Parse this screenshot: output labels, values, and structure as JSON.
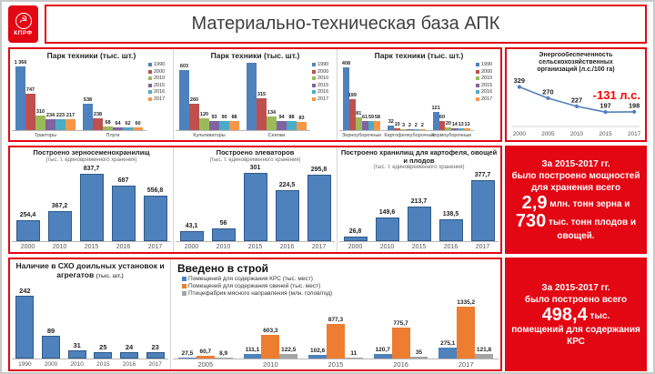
{
  "header": {
    "title": "Материально-техническая база АПК",
    "logo_text": "КПРФ"
  },
  "colors": {
    "accent_red": "#E30613",
    "annotation_red": "#FF0000",
    "bar_blue": "#4F81BD",
    "bar_orange": "#ED7D31",
    "bar_gray": "#A5A5A5"
  },
  "chart_data": [
    {
      "type": "bar",
      "title": "Парк техники (тыс. шт.)",
      "categories": [
        "Тракторы",
        "Плуги"
      ],
      "ymax": 1450,
      "series": [
        {
          "name": "1990",
          "color": "#4F81BD",
          "values": [
            1366,
            538
          ],
          "labels": [
            "1 366",
            "538"
          ]
        },
        {
          "name": "2000",
          "color": "#C0504D",
          "values": [
            747,
            238
          ],
          "labels": [
            "747",
            "238"
          ]
        },
        {
          "name": "2010",
          "color": "#9BBB59",
          "values": [
            310,
            68
          ],
          "labels": [
            "310",
            "68"
          ]
        },
        {
          "name": "2015",
          "color": "#8064A2",
          "values": [
            234,
            64
          ],
          "labels": [
            "234",
            "64"
          ]
        },
        {
          "name": "2016",
          "color": "#4BACC6",
          "values": [
            223,
            62
          ],
          "labels": [
            "223",
            "62"
          ]
        },
        {
          "name": "2017",
          "color": "#F79646",
          "values": [
            217,
            60
          ],
          "labels": [
            "217",
            "60"
          ]
        }
      ]
    },
    {
      "type": "bar",
      "title": "Парк техники (тыс. шт.)",
      "categories": [
        "Культиваторы",
        "Сеялки"
      ],
      "ymax": 700,
      "series": [
        {
          "name": "1990",
          "color": "#4F81BD",
          "values": [
            603,
            673
          ],
          "labels": [
            "603",
            ""
          ]
        },
        {
          "name": "2000",
          "color": "#C0504D",
          "values": [
            260,
            315
          ],
          "labels": [
            "260",
            "315"
          ]
        },
        {
          "name": "2010",
          "color": "#9BBB59",
          "values": [
            120,
            134
          ],
          "labels": [
            "120",
            "134"
          ]
        },
        {
          "name": "2015",
          "color": "#8064A2",
          "values": [
            93,
            94
          ],
          "labels": [
            "93",
            "94"
          ]
        },
        {
          "name": "2016",
          "color": "#4BACC6",
          "values": [
            90,
            88
          ],
          "labels": [
            "90",
            "88"
          ]
        },
        {
          "name": "2017",
          "color": "#F79646",
          "values": [
            88,
            83
          ],
          "labels": [
            "88",
            "83"
          ]
        }
      ]
    },
    {
      "type": "bar",
      "title": "Парк техники (тыс. шт.)",
      "categories": [
        "Зерноуборочные",
        "Картофелеуборочные",
        "Кормоуборочные"
      ],
      "ymax": 455,
      "series": [
        {
          "name": "1990",
          "color": "#4F81BD",
          "values": [
            408,
            32,
            121
          ],
          "labels": [
            "408",
            "32",
            "121"
          ]
        },
        {
          "name": "2000",
          "color": "#C0504D",
          "values": [
            199,
            10,
            60
          ],
          "labels": [
            "199",
            "10",
            "60"
          ]
        },
        {
          "name": "2010",
          "color": "#9BBB59",
          "values": [
            81,
            3,
            20
          ],
          "labels": [
            "81",
            "3",
            "20"
          ]
        },
        {
          "name": "2015",
          "color": "#8064A2",
          "values": [
            61,
            2,
            14
          ],
          "labels": [
            "61",
            "2",
            "14"
          ]
        },
        {
          "name": "2016",
          "color": "#4BACC6",
          "values": [
            59,
            2,
            13
          ],
          "labels": [
            "59",
            "2",
            "13"
          ]
        },
        {
          "name": "2017",
          "color": "#F79646",
          "values": [
            58,
            2,
            13
          ],
          "labels": [
            "58",
            "2",
            "13"
          ]
        }
      ]
    },
    {
      "type": "line",
      "title_lines": [
        "Энергообеспеченность",
        "сельскохозяйственных",
        "организаций (л.с./100 га)"
      ],
      "categories": [
        "2000",
        "2005",
        "2010",
        "2015",
        "2017"
      ],
      "values": [
        329,
        270,
        227,
        197,
        198
      ],
      "labels": [
        "329",
        "270",
        "227",
        "197",
        "198"
      ],
      "ylim": [
        150,
        360
      ],
      "line_color": "#4F81BD",
      "annotation": "-131 л.с."
    },
    {
      "type": "bar",
      "title": "Построено зерносеменохранилищ",
      "subtitle": "(тыс. т. единовременного хранения)",
      "categories": [
        "2000",
        "2010",
        "2015",
        "2016",
        "2017"
      ],
      "ymax": 950,
      "series": [
        {
          "name": "построено",
          "color": "#4F81BD",
          "border": "#2E5A88",
          "values": [
            254.4,
            367.2,
            837.7,
            687,
            556.8
          ],
          "labels": [
            "254,4",
            "367,2",
            "837,7",
            "687",
            "556,8"
          ]
        }
      ]
    },
    {
      "type": "bar",
      "title": "Построено элеваторов",
      "subtitle": "(тыс. т. единовременного хранения)",
      "categories": [
        "2000",
        "2010",
        "2015",
        "2016",
        "2017"
      ],
      "ymax": 340,
      "series": [
        {
          "name": "построено",
          "color": "#4F81BD",
          "border": "#2E5A88",
          "values": [
            43.1,
            56,
            301,
            224.5,
            295.8
          ],
          "labels": [
            "43,1",
            "56",
            "301",
            "224,5",
            "295,8"
          ]
        }
      ]
    },
    {
      "type": "bar",
      "title": "Построено хранилищ для картофеля, овощей и плодов",
      "subtitle": "(тыс. т. единовременного хранения)",
      "categories": [
        "2000",
        "2010",
        "2015",
        "2016",
        "2017"
      ],
      "ymax": 430,
      "series": [
        {
          "name": "построено",
          "color": "#4F81BD",
          "border": "#2E5A88",
          "values": [
            26.8,
            149.6,
            213.7,
            138.5,
            377.7
          ],
          "labels": [
            "26,8",
            "149,6",
            "213,7",
            "138,5",
            "377,7"
          ]
        }
      ]
    },
    {
      "type": "bar",
      "title": "Наличие в СХО доильных установок и агрегатов",
      "unit": "(тыс. шт.)",
      "categories": [
        "1990",
        "2000",
        "2010",
        "2015",
        "2016",
        "2017"
      ],
      "ymax": 300,
      "series": [
        {
          "name": "наличие",
          "color": "#4F81BD",
          "border": "#2E5A88",
          "values": [
            242,
            89,
            31,
            25,
            24,
            23
          ],
          "labels": [
            "242",
            "89",
            "31",
            "25",
            "24",
            "23"
          ]
        }
      ]
    },
    {
      "type": "bar",
      "title": "Введено в строй",
      "categories": [
        "2005",
        "2010",
        "2015",
        "2016",
        "2017"
      ],
      "ymax": 1490,
      "series": [
        {
          "name": "Помещений для содержания КРС (тыс. мест)",
          "color": "#4F81BD",
          "values": [
            27.5,
            111.1,
            102.6,
            120.7,
            275.1
          ],
          "labels": [
            "27,5",
            "111,1",
            "102,6",
            "120,7",
            "275,1"
          ]
        },
        {
          "name": "Помещений для содержания свиней (тыс. мест)",
          "color": "#ED7D31",
          "values": [
            60.7,
            603.3,
            877.3,
            775.7,
            1335.2
          ],
          "labels": [
            "60,7",
            "603,3",
            "877,3",
            "775,7",
            "1335,2"
          ]
        },
        {
          "name": "Птицефабрик мясного направления (млн. голов/год)",
          "color": "#A5A5A5",
          "values": [
            8.9,
            122.5,
            11,
            35,
            121.8
          ],
          "labels": [
            "8,9",
            "122,5",
            "11",
            "35",
            "121,8"
          ]
        }
      ]
    }
  ],
  "grain_box": {
    "line1": "За 2015-2017 гг.",
    "line2": "было построено мощностей",
    "line3": "для хранения всего",
    "big1": "2,9",
    "rest1": "млн. тонн зерна и",
    "big2": "730",
    "rest2": "тыс. тонн плодов и овощей."
  },
  "krs_box": {
    "line1": "За 2015-2017 гг.",
    "line2": "было построено всего",
    "big": "498,4",
    "rest": "тыс.",
    "line3": "помещений для содержания КРС"
  }
}
